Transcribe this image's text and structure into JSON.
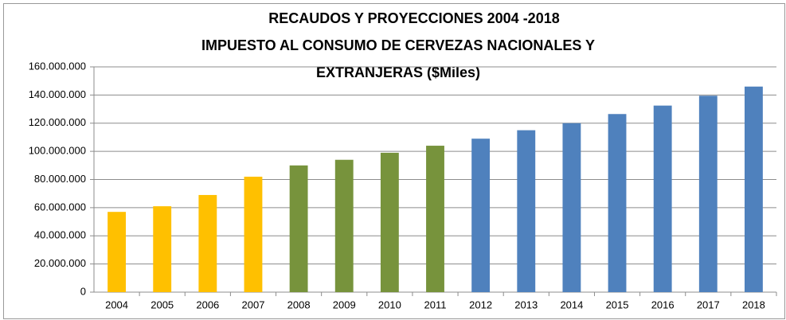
{
  "chart_data": {
    "type": "bar",
    "title": [
      "RECAUDOS Y PROYECCIONES 2004 -2018",
      "IMPUESTO AL CONSUMO DE CERVEZAS NACIONALES Y",
      "EXTRANJERAS ($Miles)"
    ],
    "categories": [
      "2004",
      "2005",
      "2006",
      "2007",
      "2008",
      "2009",
      "2010",
      "2011",
      "2012",
      "2013",
      "2014",
      "2015",
      "2016",
      "2017",
      "2018"
    ],
    "values": [
      57000000,
      61000000,
      69000000,
      82000000,
      90000000,
      94000000,
      99000000,
      104000000,
      109000000,
      115000000,
      120000000,
      126500000,
      132500000,
      139500000,
      146000000
    ],
    "colors": [
      "#ffc000",
      "#ffc000",
      "#ffc000",
      "#ffc000",
      "#77933c",
      "#77933c",
      "#77933c",
      "#77933c",
      "#4f81bd",
      "#4f81bd",
      "#4f81bd",
      "#4f81bd",
      "#4f81bd",
      "#4f81bd",
      "#4f81bd"
    ],
    "ylim": [
      0,
      160000000
    ],
    "yticks": [
      0,
      {
        "value": 20000000,
        "label": "20.000.000"
      },
      {
        "value": 40000000,
        "label": "40.000.000"
      },
      {
        "value": 60000000,
        "label": "60.000.000"
      },
      {
        "value": 80000000,
        "label": "80.000.000"
      },
      {
        "value": 100000000,
        "label": "100.000.000"
      },
      {
        "value": 120000000,
        "label": "120.000.000"
      },
      {
        "value": 140000000,
        "label": "140.000.000"
      },
      {
        "value": 160000000,
        "label": "160.000.000"
      }
    ],
    "grid": true
  }
}
